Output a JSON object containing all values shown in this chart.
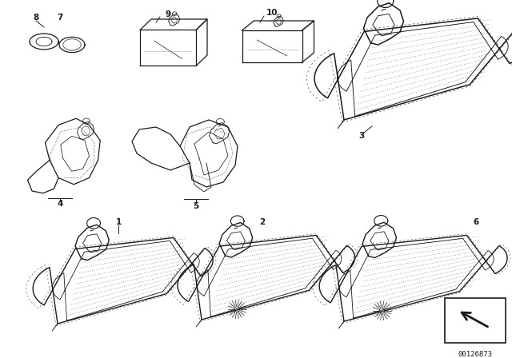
{
  "bg_color": "#ffffff",
  "line_color": "#1a1a1a",
  "part_number": "00126873",
  "figsize": [
    6.4,
    4.48
  ],
  "dpi": 100
}
